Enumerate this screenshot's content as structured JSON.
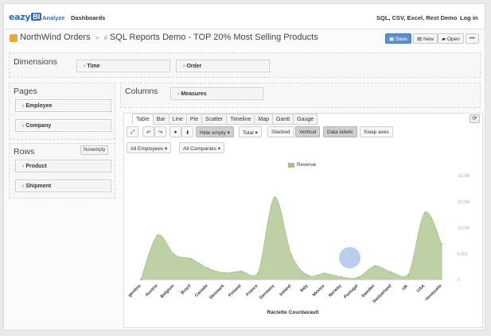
{
  "nav": {
    "logo_text": "eazy",
    "logo_box": "BI",
    "analyze": "Analyze",
    "dashboards": "Dashboards",
    "demo_link": "SQL, CSV, Excel, Rest Demo",
    "login": "Log in"
  },
  "titlebar": {
    "account": "NorthWind Orders",
    "separator": "»",
    "report": "SQL Reports Demo - TOP 20% Most Selling Products",
    "save": "Save",
    "new": "New",
    "open": "Open",
    "more": "•••"
  },
  "dimensions": {
    "title": "Dimensions",
    "items": [
      "Time",
      "Order"
    ]
  },
  "pages": {
    "title": "Pages",
    "items": [
      "Employee",
      "Company"
    ]
  },
  "rows": {
    "title": "Rows",
    "nonempty": "Nonempty",
    "items": [
      "Product",
      "Shipment"
    ]
  },
  "columns": {
    "title": "Columns",
    "items": [
      "Measures"
    ]
  },
  "tabs": [
    "Table",
    "Bar",
    "Line",
    "Pie",
    "Scatter",
    "Timeline",
    "Map",
    "Gantt",
    "Gauge"
  ],
  "active_tab": "Table",
  "toolbar": {
    "hide_empty": "Hide empty ▾",
    "total": "Total ▾",
    "stacked": "Stacked",
    "vertical": "Vertical",
    "data_labels": "Data labels",
    "swap_axes": "Swap axes",
    "all_employees": "All Employees ▾",
    "all_companies": "All Companies ▾"
  },
  "colors": {
    "accent": "#2d6db5",
    "area_fill": "#bdd0a6",
    "area_stroke": "#a6c187"
  },
  "chart_data": {
    "type": "area",
    "series": [
      {
        "name": "Revenue",
        "values": [
          0,
          8500,
          4800,
          4000,
          2200,
          1300,
          1600,
          1200,
          15800,
          4800,
          800,
          1200,
          500,
          400,
          2600,
          1400,
          900,
          12900,
          6800
        ]
      }
    ],
    "categories": [
      "Argentina",
      "Austria",
      "Belgium",
      "Brazil",
      "Canada",
      "Denmark",
      "Finland",
      "France",
      "Germany",
      "Ireland",
      "Italy",
      "Mexico",
      "Norway",
      "Portugal",
      "Sweden",
      "Switzerland",
      "UK",
      "USA",
      "Venezuela"
    ],
    "category_labels": [
      "gentina",
      "Austria",
      "Belgium",
      "Brazil",
      "Canada",
      "Denmark",
      "Finland",
      "France",
      "Germany",
      "Ireland",
      "Italy",
      "Mexico",
      "Norway",
      "Portugal",
      "Sweden",
      "Switzerland",
      "UK",
      "USA",
      "Venezuela"
    ],
    "xlabel": "Raclette Courdavault",
    "ylabel": "",
    "ylim": [
      0,
      20000
    ],
    "y_ticks": [
      "0",
      "5,000",
      "10,000",
      "15,000",
      "20,000"
    ],
    "legend_position": "top-center",
    "grid": false
  }
}
